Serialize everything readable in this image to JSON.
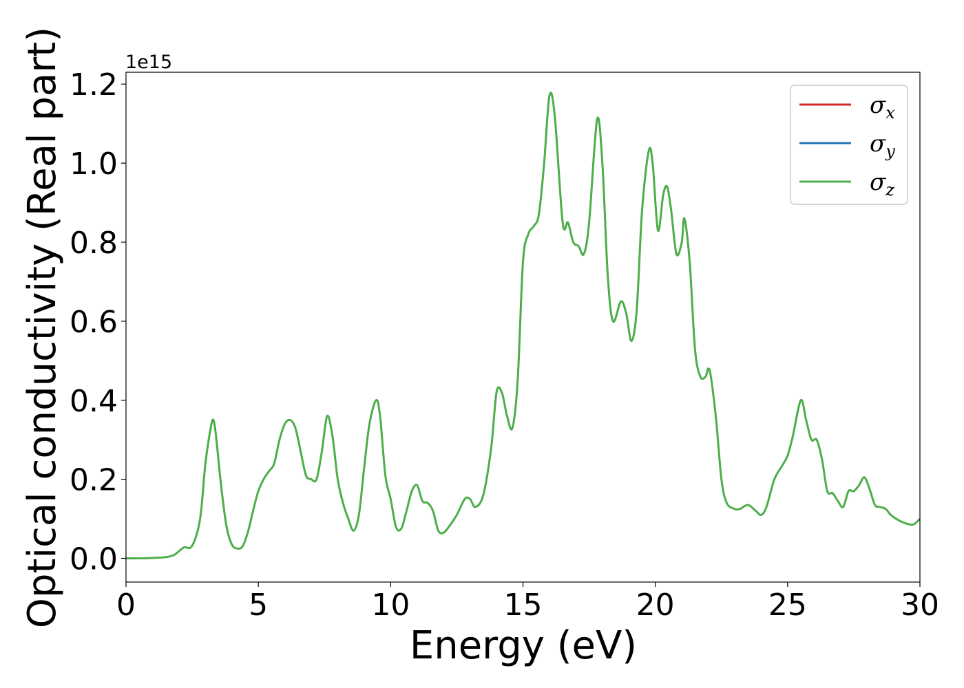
{
  "chart_data": {
    "type": "line",
    "xlabel": "Energy (eV)",
    "ylabel": "Optical conductivity (Real part)",
    "y_offset_label": "1e15",
    "y_multiplier": 1000000000000000.0,
    "xlim": [
      0,
      30
    ],
    "ylim": [
      -0.06,
      1.23
    ],
    "xticks": [
      0,
      5,
      10,
      15,
      20,
      25,
      30
    ],
    "xtick_labels": [
      "0",
      "5",
      "10",
      "15",
      "20",
      "25",
      "30"
    ],
    "yticks": [
      0.0,
      0.2,
      0.4,
      0.6,
      0.8,
      1.0,
      1.2
    ],
    "ytick_labels": [
      "0.0",
      "0.2",
      "0.4",
      "0.6",
      "0.8",
      "1.0",
      "1.2"
    ],
    "grid": false,
    "legend_position": "top-right",
    "x": [
      0,
      0.5,
      1.0,
      1.5,
      1.8,
      2.0,
      2.2,
      2.5,
      2.8,
      3.0,
      3.2,
      3.3,
      3.4,
      3.6,
      3.8,
      4.0,
      4.2,
      4.4,
      4.6,
      4.8,
      5.0,
      5.2,
      5.4,
      5.6,
      5.8,
      6.0,
      6.2,
      6.4,
      6.6,
      6.8,
      7.0,
      7.2,
      7.4,
      7.6,
      7.8,
      8.0,
      8.2,
      8.4,
      8.6,
      8.8,
      9.0,
      9.2,
      9.45,
      9.6,
      9.8,
      10.0,
      10.2,
      10.4,
      10.6,
      10.8,
      11.0,
      11.2,
      11.4,
      11.6,
      11.8,
      12.0,
      12.2,
      12.5,
      12.8,
      13.0,
      13.2,
      13.5,
      13.8,
      14.0,
      14.2,
      14.4,
      14.6,
      14.8,
      15.0,
      15.2,
      15.4,
      15.6,
      15.8,
      16.0,
      16.2,
      16.5,
      16.7,
      16.9,
      17.1,
      17.3,
      17.5,
      17.8,
      18.0,
      18.2,
      18.4,
      18.7,
      18.9,
      19.1,
      19.3,
      19.5,
      19.75,
      19.9,
      20.1,
      20.3,
      20.45,
      20.6,
      20.8,
      21.0,
      21.1,
      21.3,
      21.5,
      21.7,
      21.9,
      22.0,
      22.1,
      22.3,
      22.5,
      22.7,
      23.0,
      23.2,
      23.5,
      23.8,
      24.0,
      24.2,
      24.5,
      24.8,
      25.0,
      25.2,
      25.5,
      25.7,
      25.9,
      26.1,
      26.3,
      26.5,
      26.7,
      26.9,
      27.1,
      27.3,
      27.5,
      27.7,
      27.9,
      28.1,
      28.3,
      28.5,
      28.7,
      28.9,
      29.1,
      29.4,
      29.7,
      29.85,
      30.0
    ],
    "y": [
      0.0,
      0.0,
      0.001,
      0.003,
      0.008,
      0.018,
      0.028,
      0.032,
      0.1,
      0.24,
      0.33,
      0.35,
      0.31,
      0.18,
      0.08,
      0.035,
      0.025,
      0.03,
      0.065,
      0.12,
      0.17,
      0.2,
      0.22,
      0.24,
      0.3,
      0.34,
      0.35,
      0.33,
      0.27,
      0.21,
      0.2,
      0.2,
      0.27,
      0.36,
      0.31,
      0.2,
      0.14,
      0.1,
      0.07,
      0.11,
      0.23,
      0.34,
      0.4,
      0.36,
      0.21,
      0.15,
      0.08,
      0.075,
      0.12,
      0.17,
      0.185,
      0.145,
      0.14,
      0.12,
      0.07,
      0.065,
      0.08,
      0.11,
      0.15,
      0.15,
      0.13,
      0.16,
      0.28,
      0.42,
      0.42,
      0.36,
      0.33,
      0.45,
      0.75,
      0.82,
      0.84,
      0.87,
      1.0,
      1.17,
      1.12,
      0.85,
      0.85,
      0.8,
      0.79,
      0.77,
      0.85,
      1.11,
      1.0,
      0.72,
      0.6,
      0.65,
      0.62,
      0.55,
      0.63,
      0.88,
      1.03,
      1.0,
      0.83,
      0.92,
      0.94,
      0.88,
      0.77,
      0.8,
      0.86,
      0.75,
      0.53,
      0.46,
      0.46,
      0.48,
      0.46,
      0.35,
      0.2,
      0.14,
      0.125,
      0.125,
      0.135,
      0.12,
      0.11,
      0.13,
      0.2,
      0.235,
      0.26,
      0.31,
      0.4,
      0.35,
      0.3,
      0.3,
      0.25,
      0.17,
      0.165,
      0.145,
      0.13,
      0.17,
      0.17,
      0.185,
      0.205,
      0.175,
      0.135,
      0.13,
      0.125,
      0.11,
      0.1,
      0.09,
      0.085,
      0.09,
      0.1
    ],
    "series": [
      {
        "name": "σx",
        "symbol": "σ",
        "subscript": "x",
        "color": "#d62728",
        "width": 2.5
      },
      {
        "name": "σy",
        "symbol": "σ",
        "subscript": "y",
        "color": "#1f77b4",
        "width": 2.5
      },
      {
        "name": "σz",
        "symbol": "σ",
        "subscript": "z",
        "color": "#4daf4a",
        "width": 3
      }
    ],
    "note_series_identical": true
  }
}
